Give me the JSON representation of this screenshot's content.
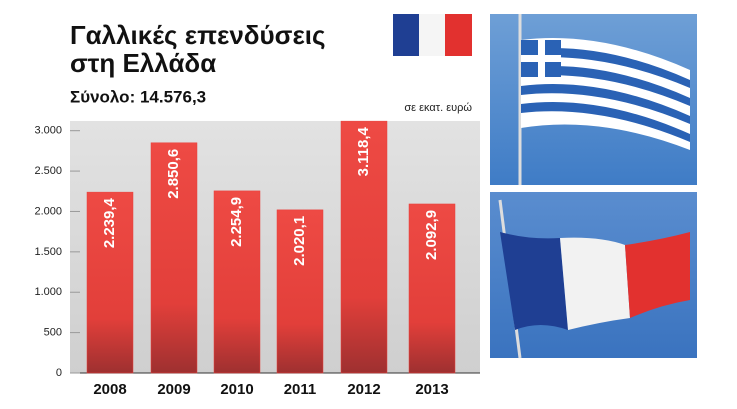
{
  "chart_data": {
    "type": "bar",
    "title": "Γαλλικές επενδύσεις στη Ελλάδα",
    "subtitle": "Σύνολο: 14.576,3",
    "unit": "σε εκατ. ευρώ",
    "categories": [
      "2008",
      "2009",
      "2010",
      "2011",
      "2012",
      "2013"
    ],
    "values": [
      2239.4,
      2850.6,
      2254.9,
      2020.1,
      3118.4,
      2092.9
    ],
    "value_labels": [
      "2.239,4",
      "2.850,6",
      "2.254,9",
      "2.020,1",
      "3.118,4",
      "2.092,9"
    ],
    "color": "#e8413c",
    "ylim": [
      0,
      3120
    ],
    "yticks": [
      0,
      500,
      {
        "value": 1000,
        "label": "1.000"
      },
      {
        "value": 1500,
        "label": "1.500"
      },
      {
        "value": 2000,
        "label": "2.000"
      },
      {
        "value": 2500,
        "label": "2.500"
      },
      {
        "value": 3000,
        "label": "3.000"
      }
    ]
  }
}
